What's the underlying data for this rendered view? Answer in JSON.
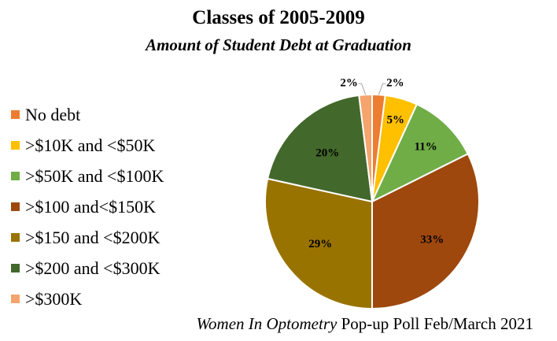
{
  "chart_data": {
    "type": "pie",
    "title": "Classes of 2005-2009",
    "subtitle": "Amount of Student Debt at Graduation",
    "legend_position": "left",
    "slices": [
      {
        "label": "No debt",
        "value": 2,
        "value_label": "2%",
        "color": "#ED7D31"
      },
      {
        "label": ">$10K and <$50K",
        "value": 5,
        "value_label": "5%",
        "color": "#FFC000"
      },
      {
        "label": ">$50K and <$100K",
        "value": 11,
        "value_label": "11%",
        "color": "#70AD47"
      },
      {
        "label": ">$100 and<$150K",
        "value": 33,
        "value_label": "33%",
        "color": "#9E480E"
      },
      {
        "label": ">$150 and <$200K",
        "value": 29,
        "value_label": "29%",
        "color": "#997300"
      },
      {
        "label": ">$200 and <$300K",
        "value": 20,
        "value_label": "20%",
        "color": "#43682B"
      },
      {
        "label": ">$300K",
        "value": 2,
        "value_label": "2%",
        "color": "#F4A46C"
      }
    ]
  },
  "footer": {
    "source_italic": "Women In Optometry",
    "source_rest": " Pop-up Poll Feb/March 2021"
  }
}
